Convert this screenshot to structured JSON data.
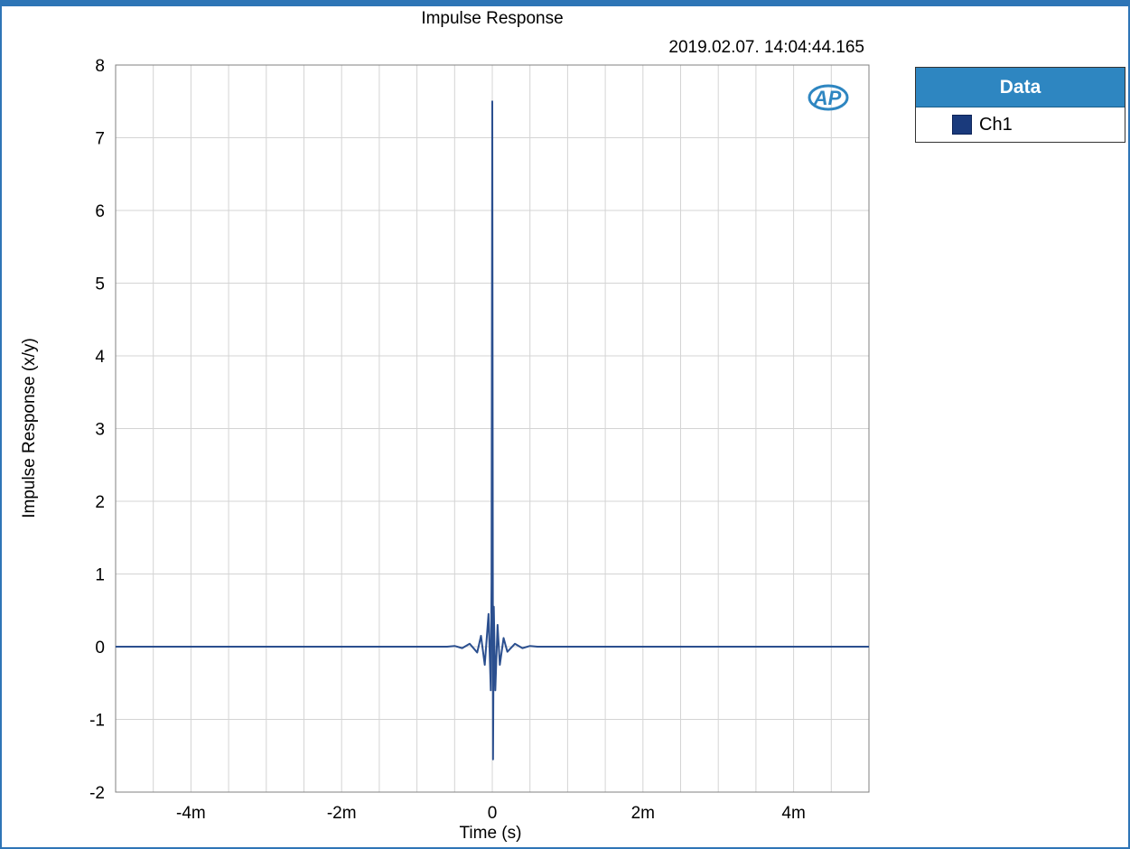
{
  "colors": {
    "accent": "#2e75b6",
    "legend_header": "#2e86c1",
    "series": "#2b4f8f",
    "grid": "#d4d4d4"
  },
  "logo": {
    "text": "AP"
  },
  "legend": {
    "title": "Data",
    "items": [
      {
        "label": "Ch1",
        "color": "#1a3a7c"
      }
    ]
  },
  "chart_data": {
    "type": "line",
    "title": "Impulse Response",
    "timestamp": "2019.02.07. 14:04:44.165",
    "xlabel": "Time (s)",
    "ylabel": "Impulse Response (x/y)",
    "xlim": [
      -0.005,
      0.005
    ],
    "ylim": [
      -2,
      8
    ],
    "x_ticks": [
      {
        "value": -0.004,
        "label": "-4m"
      },
      {
        "value": -0.002,
        "label": "-2m"
      },
      {
        "value": 0,
        "label": "0"
      },
      {
        "value": 0.002,
        "label": "2m"
      },
      {
        "value": 0.004,
        "label": "4m"
      }
    ],
    "y_ticks": [
      {
        "value": 8,
        "label": "8"
      },
      {
        "value": 7,
        "label": "7"
      },
      {
        "value": 6,
        "label": "6"
      },
      {
        "value": 5,
        "label": "5"
      },
      {
        "value": 4,
        "label": "4"
      },
      {
        "value": 3,
        "label": "3"
      },
      {
        "value": 2,
        "label": "2"
      },
      {
        "value": 1,
        "label": "1"
      },
      {
        "value": 0,
        "label": "0"
      },
      {
        "value": -1,
        "label": "-1"
      },
      {
        "value": -2,
        "label": "-2"
      }
    ],
    "grid": true,
    "x_grid_step": 0.0005,
    "legend_position": "right",
    "series": [
      {
        "name": "Ch1",
        "color": "#2b4f8f",
        "points": [
          [
            -0.005,
            0.0
          ],
          [
            -0.0006,
            0.0
          ],
          [
            -0.0005,
            0.01
          ],
          [
            -0.0004,
            -0.02
          ],
          [
            -0.0003,
            0.04
          ],
          [
            -0.0002,
            -0.08
          ],
          [
            -0.00015,
            0.15
          ],
          [
            -0.0001,
            -0.25
          ],
          [
            -5e-05,
            0.45
          ],
          [
            -2e-05,
            -0.6
          ],
          [
            -1e-05,
            0.9
          ],
          [
            0.0,
            7.5
          ],
          [
            1e-05,
            -1.55
          ],
          [
            2e-05,
            0.55
          ],
          [
            4e-05,
            -0.6
          ],
          [
            7e-05,
            0.3
          ],
          [
            0.0001,
            -0.25
          ],
          [
            0.00015,
            0.12
          ],
          [
            0.0002,
            -0.07
          ],
          [
            0.0003,
            0.04
          ],
          [
            0.0004,
            -0.02
          ],
          [
            0.0005,
            0.01
          ],
          [
            0.0006,
            0.0
          ],
          [
            0.005,
            0.0
          ]
        ]
      }
    ]
  }
}
